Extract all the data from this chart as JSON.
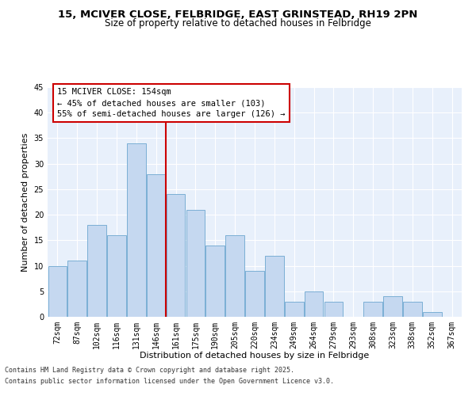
{
  "title": "15, MCIVER CLOSE, FELBRIDGE, EAST GRINSTEAD, RH19 2PN",
  "subtitle": "Size of property relative to detached houses in Felbridge",
  "xlabel": "Distribution of detached houses by size in Felbridge",
  "ylabel": "Number of detached properties",
  "bar_labels": [
    "72sqm",
    "87sqm",
    "102sqm",
    "116sqm",
    "131sqm",
    "146sqm",
    "161sqm",
    "175sqm",
    "190sqm",
    "205sqm",
    "220sqm",
    "234sqm",
    "249sqm",
    "264sqm",
    "279sqm",
    "293sqm",
    "308sqm",
    "323sqm",
    "338sqm",
    "352sqm",
    "367sqm"
  ],
  "bar_values": [
    10,
    11,
    18,
    16,
    34,
    28,
    24,
    21,
    14,
    16,
    9,
    12,
    3,
    5,
    3,
    0,
    3,
    4,
    3,
    1,
    0
  ],
  "bar_color": "#c5d8f0",
  "bar_edge_color": "#7bafd4",
  "vline_x": 5.5,
  "vline_color": "#cc0000",
  "annotation_title": "15 MCIVER CLOSE: 154sqm",
  "annotation_line1": "← 45% of detached houses are smaller (103)",
  "annotation_line2": "55% of semi-detached houses are larger (126) →",
  "annotation_box_color": "#ffffff",
  "annotation_box_edge": "#cc0000",
  "ylim": [
    0,
    45
  ],
  "yticks": [
    0,
    5,
    10,
    15,
    20,
    25,
    30,
    35,
    40,
    45
  ],
  "plot_bg_color": "#e8f0fb",
  "footer_line1": "Contains HM Land Registry data © Crown copyright and database right 2025.",
  "footer_line2": "Contains public sector information licensed under the Open Government Licence v3.0.",
  "title_fontsize": 9.5,
  "subtitle_fontsize": 8.5,
  "axis_label_fontsize": 8,
  "tick_fontsize": 7,
  "annotation_fontsize": 7.5,
  "footer_fontsize": 6
}
